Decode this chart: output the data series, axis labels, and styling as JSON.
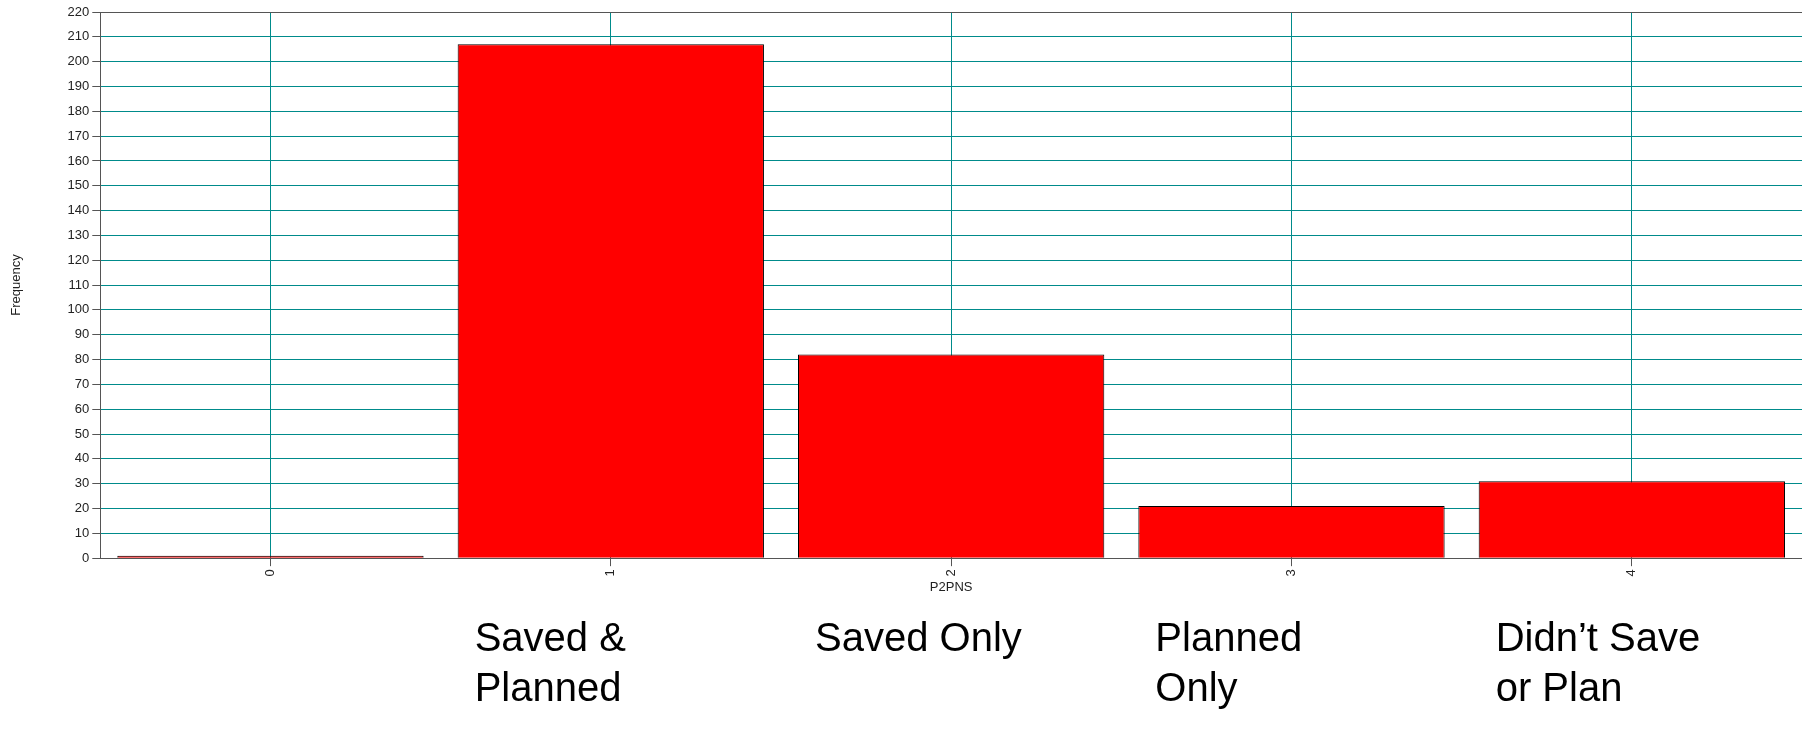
{
  "chart_data": {
    "type": "bar",
    "xlabel": "P2PNS",
    "ylabel": "Frequency",
    "categories": [
      "0",
      "1",
      "2",
      "3",
      "4"
    ],
    "values": [
      1,
      207,
      82,
      21,
      31
    ],
    "color": "#ff0000",
    "ylim": [
      0,
      220
    ],
    "yticks": [
      0,
      10,
      20,
      30,
      40,
      50,
      60,
      70,
      80,
      90,
      100,
      110,
      120,
      130,
      140,
      150,
      160,
      170,
      180,
      190,
      200,
      210,
      220
    ],
    "grid": true,
    "legend": false,
    "annotations": [
      "Saved & Planned",
      "Saved Only",
      "Planned Only",
      "Didn’t Save or Plan"
    ]
  }
}
